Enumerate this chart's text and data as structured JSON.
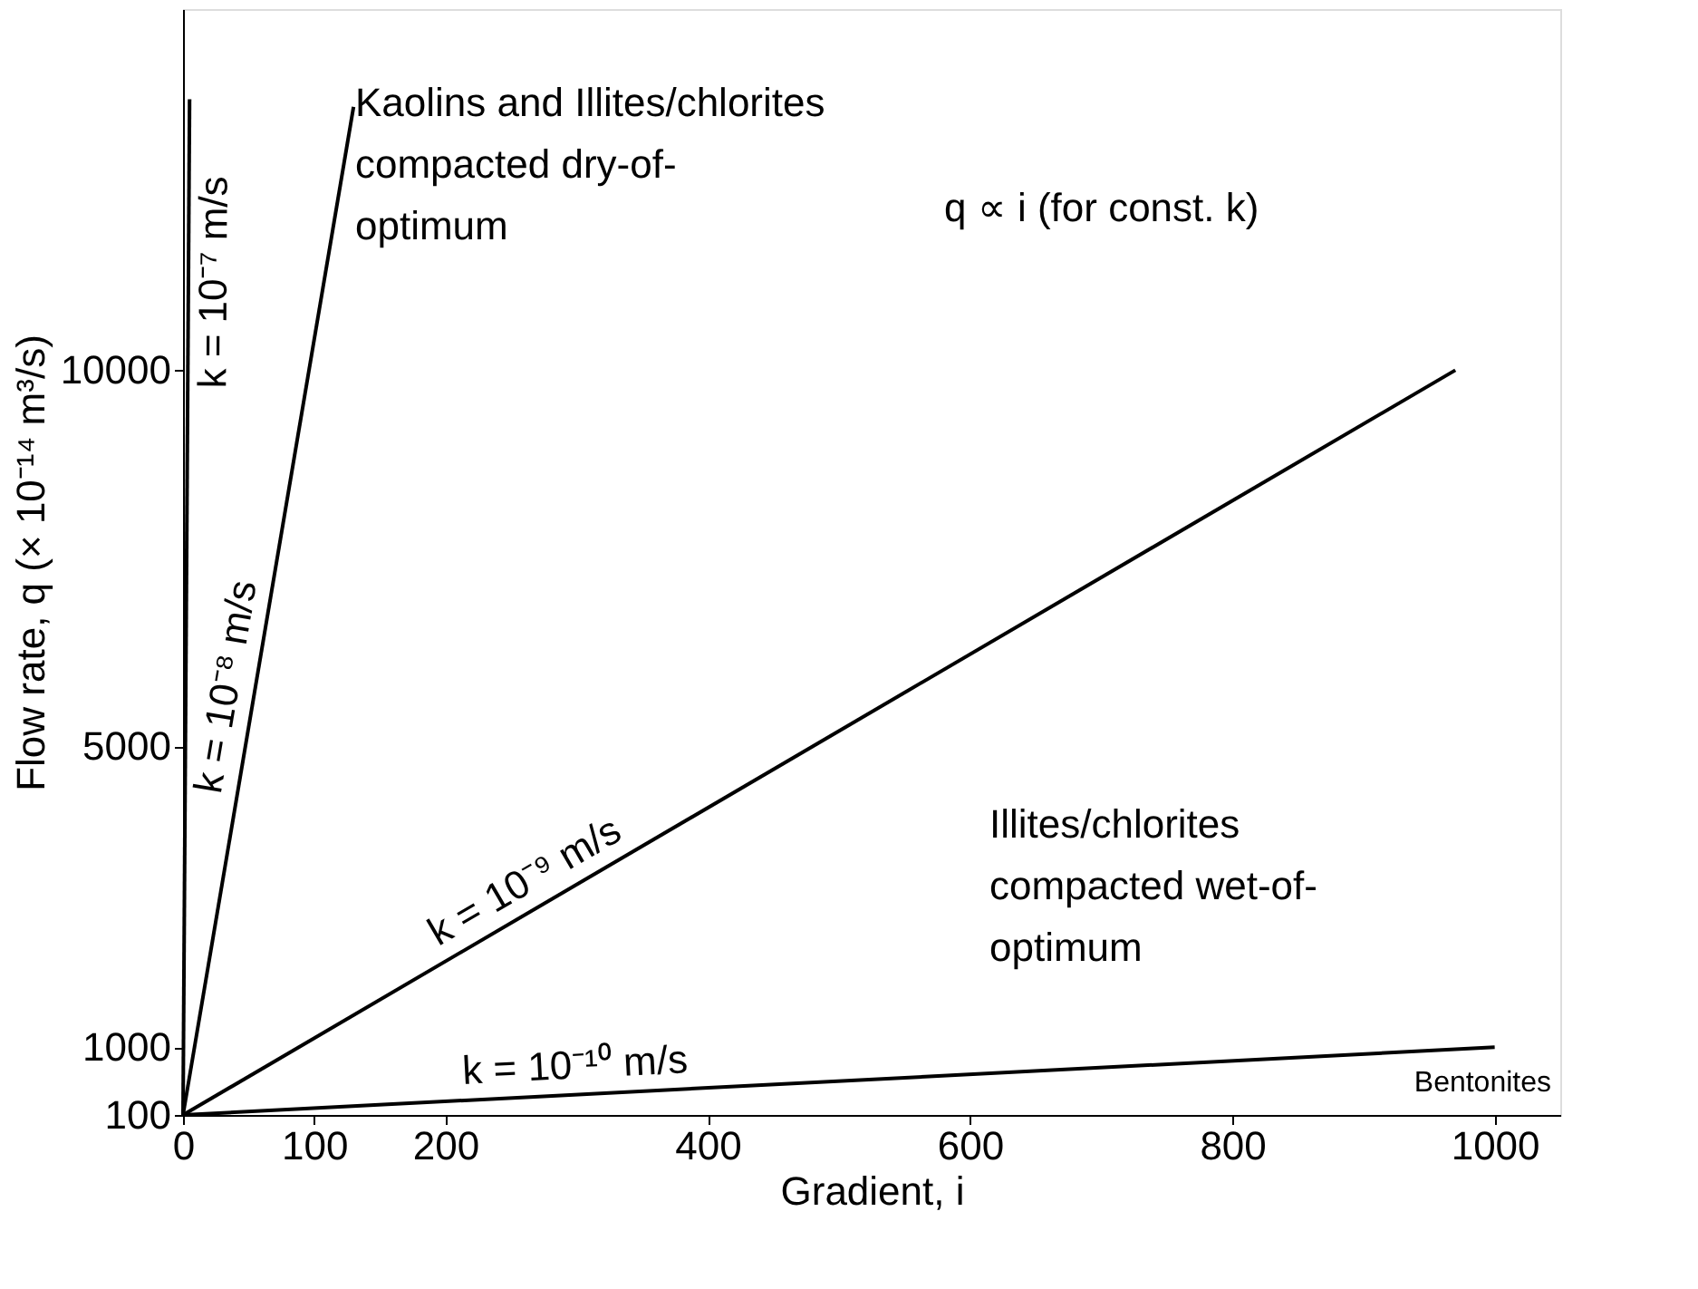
{
  "chart_data": {
    "type": "line",
    "xlabel": "Gradient, i",
    "ylabel": "Flow rate, q (× 10⁻¹⁴ m³/s)",
    "xlim": [
      0,
      1050
    ],
    "ylim": [
      100,
      14800
    ],
    "xticks": [
      0,
      100,
      200,
      400,
      600,
      800,
      1000
    ],
    "yticks": [
      100,
      1000,
      5000,
      10000
    ],
    "series": [
      {
        "name": "k = 10⁻¹⁰ m/s",
        "color": "#000000",
        "x": [
          0,
          1000
        ],
        "values": [
          100,
          1000
        ]
      },
      {
        "name": "k = 10⁻⁹ m/s",
        "color": "#000000",
        "x": [
          0,
          970
        ],
        "values": [
          100,
          10000
        ]
      },
      {
        "name": "k = 10⁻⁸ m/s",
        "color": "#000000",
        "x": [
          0,
          130
        ],
        "values": [
          100,
          13500
        ]
      },
      {
        "name": "k = 10⁻⁷ m/s",
        "color": "#000000",
        "x": [
          0,
          5
        ],
        "values": [
          100,
          13600
        ]
      }
    ],
    "annotations": [
      "Kaolins and Illites/chlorites\ncompacted dry-of-\noptimum",
      "Illites/chlorites\ncompacted wet-of-\noptimum",
      "q ∝ i (for const. k)",
      "Bentonites"
    ],
    "grid": false,
    "marker": "none",
    "line_style": "solid"
  }
}
